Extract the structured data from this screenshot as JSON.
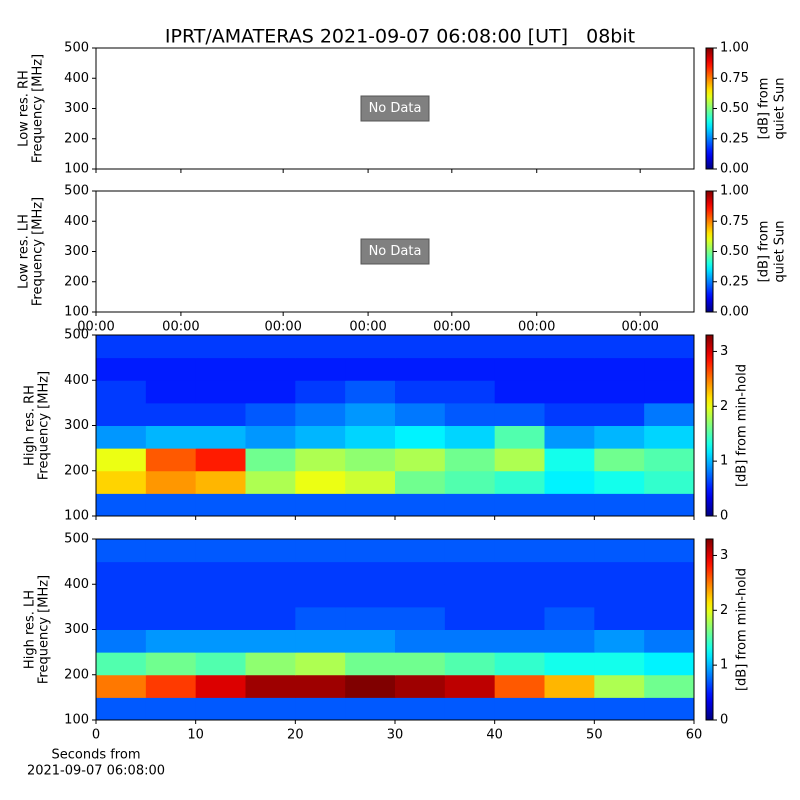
{
  "title": "IPRT/AMATERAS 2021-09-07 06:08:00 [UT]   08bit",
  "chart_data": [
    {
      "type": "heatmap",
      "ylabel": [
        "Low res. RH",
        "Frequency [MHz]"
      ],
      "annotation": "No Data",
      "xlim": [
        0,
        1
      ],
      "xticks": [
        0,
        0.142,
        0.313,
        0.455,
        0.595,
        0.737,
        0.91
      ],
      "show_xtick_labels": false,
      "ylim": [
        100,
        500
      ],
      "yticks": [
        100,
        200,
        300,
        400,
        500
      ],
      "colorbar": {
        "label": [
          "[dB] from",
          "quiet Sun"
        ],
        "colormap": "jet",
        "lim": [
          0,
          1
        ],
        "ticks": [
          {
            "value": 0,
            "label": "0.00"
          },
          {
            "value": 0.25,
            "label": "0.25"
          },
          {
            "value": 0.5,
            "label": "0.50"
          },
          {
            "value": 0.75,
            "label": "0.75"
          },
          {
            "value": 1,
            "label": "1.00"
          }
        ]
      }
    },
    {
      "type": "heatmap",
      "ylabel": [
        "Low res. LH",
        "Frequency [MHz]"
      ],
      "annotation": "No Data",
      "xlim": [
        0,
        1
      ],
      "xticks": [
        {
          "value": 0,
          "label": "00:00"
        },
        {
          "value": 0.142,
          "label": "00:00"
        },
        {
          "value": 0.313,
          "label": "00:00"
        },
        {
          "value": 0.455,
          "label": "00:00"
        },
        {
          "value": 0.595,
          "label": "00:00"
        },
        {
          "value": 0.737,
          "label": "00:00"
        },
        {
          "value": 0.91,
          "label": "00:00"
        }
      ],
      "ylim": [
        100,
        500
      ],
      "yticks": [
        100,
        200,
        300,
        400,
        500
      ],
      "colorbar": {
        "label": [
          "[dB] from",
          "quiet Sun"
        ],
        "colormap": "jet",
        "lim": [
          0,
          1
        ],
        "ticks": [
          {
            "value": 0,
            "label": "0.00"
          },
          {
            "value": 0.25,
            "label": "0.25"
          },
          {
            "value": 0.5,
            "label": "0.50"
          },
          {
            "value": 0.75,
            "label": "0.75"
          },
          {
            "value": 1,
            "label": "1.00"
          }
        ]
      }
    },
    {
      "type": "heatmap",
      "ylabel": [
        "High res. RH",
        "Frequency [MHz]"
      ],
      "xlim": [
        0,
        60
      ],
      "xticks": [
        0,
        10,
        20,
        30,
        40,
        50,
        60
      ],
      "show_xtick_labels": false,
      "ylim": [
        100,
        500
      ],
      "yticks": [
        100,
        200,
        300,
        400,
        500
      ],
      "x_bins": [
        0,
        5,
        10,
        15,
        20,
        25,
        30,
        35,
        40,
        45,
        50,
        55,
        60
      ],
      "y_bins": [
        100,
        150,
        200,
        250,
        300,
        350,
        400,
        450,
        500
      ],
      "z": [
        [
          0.7,
          0.7,
          0.7,
          0.7,
          0.7,
          0.7,
          0.7,
          0.7,
          0.7,
          0.7,
          0.7,
          0.7
        ],
        [
          2.2,
          2.4,
          2.3,
          1.8,
          2.0,
          1.9,
          1.6,
          1.5,
          1.4,
          1.2,
          1.3,
          1.4
        ],
        [
          2.0,
          2.6,
          2.8,
          1.6,
          1.8,
          1.7,
          1.8,
          1.6,
          1.8,
          1.3,
          1.6,
          1.5
        ],
        [
          0.9,
          1.0,
          1.0,
          0.9,
          1.0,
          1.1,
          1.2,
          1.1,
          1.5,
          0.9,
          1.0,
          1.1
        ],
        [
          0.6,
          0.6,
          0.6,
          0.7,
          0.8,
          0.9,
          0.8,
          0.7,
          0.7,
          0.6,
          0.6,
          0.8
        ],
        [
          0.6,
          0.5,
          0.5,
          0.5,
          0.6,
          0.7,
          0.6,
          0.6,
          0.5,
          0.5,
          0.5,
          0.5
        ],
        [
          0.5,
          0.5,
          0.5,
          0.5,
          0.5,
          0.5,
          0.5,
          0.5,
          0.5,
          0.5,
          0.5,
          0.5
        ],
        [
          0.6,
          0.6,
          0.6,
          0.6,
          0.6,
          0.6,
          0.6,
          0.6,
          0.6,
          0.6,
          0.6,
          0.6
        ]
      ],
      "colorbar": {
        "label": [
          "[dB] from min-hold"
        ],
        "colormap": "jet",
        "lim": [
          0,
          3.3
        ],
        "ticks": [
          0,
          1,
          2,
          3
        ]
      }
    },
    {
      "type": "heatmap",
      "ylabel": [
        "High res. LH",
        "Frequency [MHz]"
      ],
      "xlabel": [
        "Seconds from",
        "2021-09-07 06:08:00"
      ],
      "xlim": [
        0,
        60
      ],
      "xticks": [
        0,
        10,
        20,
        30,
        40,
        50,
        60
      ],
      "ylim": [
        100,
        500
      ],
      "yticks": [
        100,
        200,
        300,
        400,
        500
      ],
      "x_bins": [
        0,
        5,
        10,
        15,
        20,
        25,
        30,
        35,
        40,
        45,
        50,
        55,
        60
      ],
      "y_bins": [
        100,
        150,
        200,
        250,
        300,
        350,
        400,
        450,
        500
      ],
      "z": [
        [
          0.7,
          0.7,
          0.7,
          0.7,
          0.7,
          0.7,
          0.7,
          0.7,
          0.7,
          0.7,
          0.7,
          0.7
        ],
        [
          2.5,
          2.7,
          3.0,
          3.2,
          3.2,
          3.3,
          3.2,
          3.1,
          2.6,
          2.3,
          1.8,
          1.6
        ],
        [
          1.5,
          1.6,
          1.5,
          1.7,
          1.8,
          1.6,
          1.6,
          1.5,
          1.4,
          1.3,
          1.3,
          1.2
        ],
        [
          0.8,
          0.9,
          0.9,
          0.9,
          0.9,
          0.9,
          0.8,
          0.8,
          0.8,
          0.8,
          0.9,
          0.8
        ],
        [
          0.6,
          0.6,
          0.6,
          0.6,
          0.7,
          0.7,
          0.7,
          0.6,
          0.6,
          0.7,
          0.6,
          0.6
        ],
        [
          0.6,
          0.6,
          0.6,
          0.6,
          0.6,
          0.6,
          0.6,
          0.6,
          0.6,
          0.6,
          0.6,
          0.6
        ],
        [
          0.6,
          0.6,
          0.6,
          0.6,
          0.6,
          0.6,
          0.6,
          0.6,
          0.6,
          0.6,
          0.6,
          0.6
        ],
        [
          0.7,
          0.7,
          0.7,
          0.7,
          0.7,
          0.7,
          0.7,
          0.7,
          0.7,
          0.7,
          0.7,
          0.7
        ]
      ],
      "colorbar": {
        "label": [
          "[dB] from min-hold"
        ],
        "colormap": "jet",
        "lim": [
          0,
          3.3
        ],
        "ticks": [
          0,
          1,
          2,
          3
        ]
      }
    }
  ]
}
